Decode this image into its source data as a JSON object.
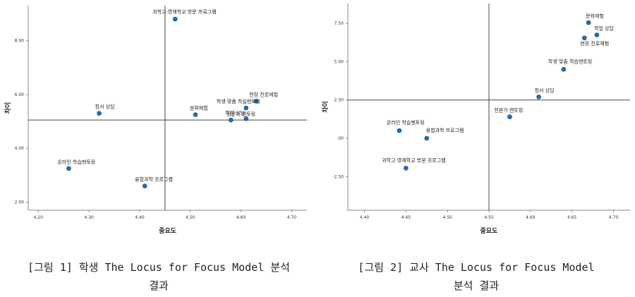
{
  "charts": [
    {
      "id": "left",
      "caption": "[그림 1] 학생 The Locus for Focus Model 분석\n결과"
    },
    {
      "id": "right",
      "caption": "[그림 2] 교사 The Locus for Focus Model\n분석 결과"
    }
  ],
  "chart_data": [
    {
      "type": "scatter",
      "title": "",
      "xlabel": "중요도",
      "ylabel": "차이",
      "xlim": [
        4.18,
        4.73
      ],
      "ylim": [
        1.7,
        9.3
      ],
      "xticks": [
        "4.20",
        "4.30",
        "4.40",
        "4.50",
        "4.60",
        "4.70"
      ],
      "xtick_values": [
        4.2,
        4.3,
        4.4,
        4.5,
        4.6,
        4.7
      ],
      "yticks": [
        "2.00",
        "4.00",
        "6.00",
        "8.00"
      ],
      "ytick_values": [
        2,
        4,
        6,
        8
      ],
      "ref_x": 4.45,
      "ref_y": 5.05,
      "grid": false,
      "points": [
        {
          "label": "과학고·영재학교 방문 프로그램",
          "x": 4.47,
          "y": 8.8
        },
        {
          "label": "정서 상담",
          "x": 4.32,
          "y": 5.3
        },
        {
          "label": "문화체험",
          "x": 4.51,
          "y": 5.25
        },
        {
          "label": "현장 진로체험",
          "x": 4.63,
          "y": 5.75
        },
        {
          "label": "학생 맞춤 학습멘토링",
          "x": 4.61,
          "y": 5.5
        },
        {
          "label": "학업 상담",
          "x": 4.61,
          "y": 5.1
        },
        {
          "label": "전문가 멘토링",
          "x": 4.58,
          "y": 5.05
        },
        {
          "label": "온라인 학습멘토링",
          "x": 4.26,
          "y": 3.25
        },
        {
          "label": "융합과학 프로그램",
          "x": 4.41,
          "y": 2.6
        }
      ]
    },
    {
      "type": "scatter",
      "title": "",
      "xlabel": "중요도",
      "ylabel": "차이",
      "xlim": [
        4.38,
        4.72
      ],
      "ylim": [
        -4.7,
        8.8
      ],
      "xticks": [
        "4.40",
        "4.45",
        "4.50",
        "4.55",
        "4.60",
        "4.65",
        "4.70"
      ],
      "xtick_values": [
        4.4,
        4.45,
        4.5,
        4.55,
        4.6,
        4.65,
        4.7
      ],
      "yticks": [
        "-2.50",
        ".00",
        "2.50",
        "5.00",
        "7.50"
      ],
      "ytick_values": [
        -2.5,
        0,
        2.5,
        5,
        7.5
      ],
      "ref_x": 4.55,
      "ref_y": 2.5,
      "grid": false,
      "points": [
        {
          "label": "문화체험",
          "x": 4.67,
          "y": 7.55
        },
        {
          "label": "학업 상담",
          "x": 4.68,
          "y": 6.75
        },
        {
          "label": "현장 진로체험",
          "x": 4.665,
          "y": 6.55
        },
        {
          "label": "학생 맞춤 학습멘토링",
          "x": 4.64,
          "y": 4.5
        },
        {
          "label": "정서 상담",
          "x": 4.61,
          "y": 2.7
        },
        {
          "label": "전문가 멘토링",
          "x": 4.575,
          "y": 1.4
        },
        {
          "label": "온라인 학습멘토링",
          "x": 4.442,
          "y": 0.5
        },
        {
          "label": "융합과학 프로그램",
          "x": 4.475,
          "y": 0.0
        },
        {
          "label": "과학고·영재학교 방문 프로그램",
          "x": 4.45,
          "y": -1.95
        }
      ]
    }
  ]
}
